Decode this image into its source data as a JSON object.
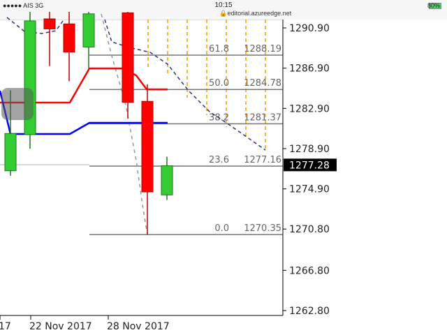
{
  "status_bar": {
    "carrier": "●●●●● AIS  3G",
    "time": "10:15",
    "url": "editorial.azureedge.net",
    "battery": "80%"
  },
  "chart_data": {
    "type": "candlestick",
    "ylim": [
      1262.8,
      1292.5
    ],
    "y_ticks": [
      "1290.90",
      "1286.90",
      "1282.90",
      "1278.90",
      "1274.90",
      "1270.80",
      "1266.80",
      "1262.80"
    ],
    "x_tick_labels": [
      "17",
      "22 Nov 2017",
      "28 Nov 2017"
    ],
    "current_price": "1277.28",
    "candles": [
      {
        "o": 1276.7,
        "h": 1284.7,
        "l": 1276.2,
        "c": 1280.4
      },
      {
        "o": 1280.3,
        "h": 1292.5,
        "l": 1278.9,
        "c": 1291.6
      },
      {
        "o": 1291.8,
        "h": 1292.5,
        "l": 1287.1,
        "c": 1290.8
      },
      {
        "o": 1291.3,
        "h": 1292.5,
        "l": 1285.6,
        "c": 1288.5
      },
      {
        "o": 1289.0,
        "h": 1292.5,
        "l": 1286.9,
        "c": 1292.3
      },
      null,
      {
        "o": 1292.4,
        "h": 1292.5,
        "l": 1281.9,
        "c": 1283.5
      },
      {
        "o": 1283.6,
        "h": 1285.3,
        "l": 1270.35,
        "c": 1274.6
      },
      {
        "o": 1274.3,
        "h": 1278.1,
        "l": 1273.8,
        "c": 1277.2
      }
    ],
    "fibonacci": [
      {
        "level": "61.8",
        "price": "1288.19"
      },
      {
        "level": "50.0",
        "price": "1284.78"
      },
      {
        "level": "38.2",
        "price": "1281.37"
      },
      {
        "level": "23.6",
        "price": "1277.16"
      },
      {
        "level": "0.0",
        "price": "1270.35"
      }
    ],
    "colors": {
      "up": "#33cc33",
      "down": "#ff0000",
      "red_line": "#ff0000",
      "blue_line": "#0000ff",
      "dashed": "#333377",
      "fib_time": "#ff9900"
    }
  }
}
